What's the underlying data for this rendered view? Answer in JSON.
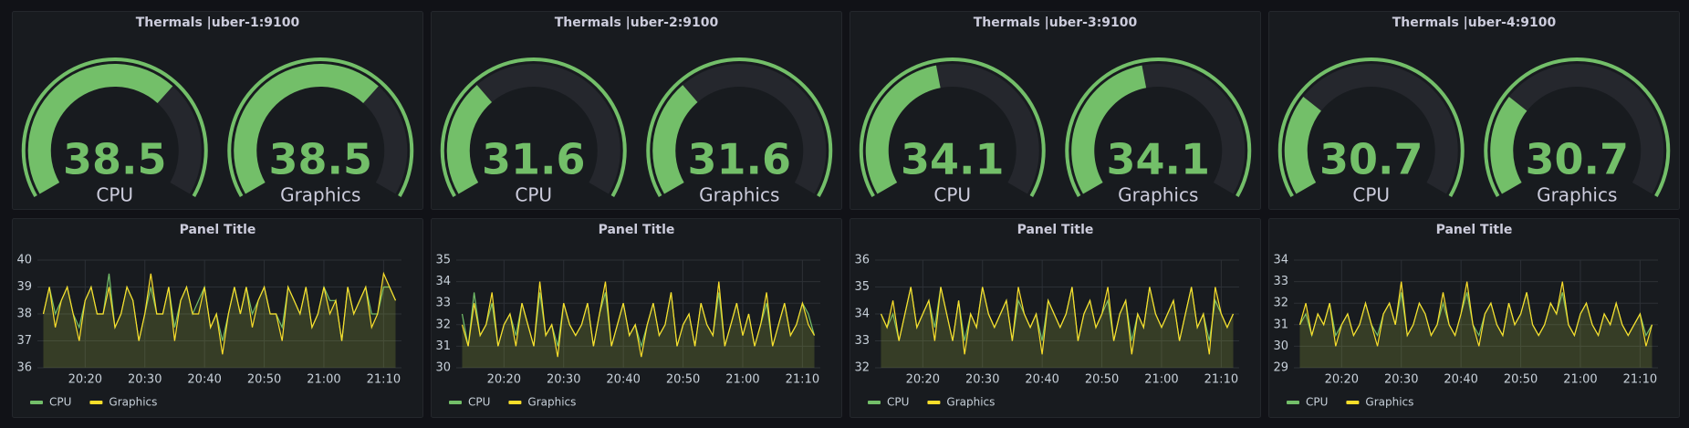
{
  "chart_data": [
    {
      "type": "gauge",
      "title": "Thermals |uber-1:9100",
      "ylim": [
        25,
        45
      ],
      "series": [
        {
          "name": "CPU",
          "color": "#73bf69",
          "values": [
            38.5
          ]
        },
        {
          "name": "Graphics",
          "color": "#73bf69",
          "values": [
            38.5
          ]
        }
      ]
    },
    {
      "type": "gauge",
      "title": "Thermals |uber-2:9100",
      "ylim": [
        25,
        45
      ],
      "series": [
        {
          "name": "CPU",
          "color": "#73bf69",
          "values": [
            31.6
          ]
        },
        {
          "name": "Graphics",
          "color": "#73bf69",
          "values": [
            31.6
          ]
        }
      ]
    },
    {
      "type": "gauge",
      "title": "Thermals |uber-3:9100",
      "ylim": [
        25,
        45
      ],
      "series": [
        {
          "name": "CPU",
          "color": "#73bf69",
          "values": [
            34.1
          ]
        },
        {
          "name": "Graphics",
          "color": "#73bf69",
          "values": [
            34.1
          ]
        }
      ]
    },
    {
      "type": "gauge",
      "title": "Thermals |uber-4:9100",
      "ylim": [
        25,
        45
      ],
      "series": [
        {
          "name": "CPU",
          "color": "#73bf69",
          "values": [
            30.7
          ]
        },
        {
          "name": "Graphics",
          "color": "#73bf69",
          "values": [
            30.7
          ]
        }
      ]
    },
    {
      "type": "line",
      "title": "Panel Title",
      "grid": true,
      "legend": "bottom-left",
      "x": [
        1213,
        1214,
        1215,
        1216,
        1217,
        1218,
        1219,
        1220,
        1221,
        1222,
        1223,
        1224,
        1225,
        1226,
        1227,
        1228,
        1229,
        1230,
        1231,
        1232,
        1233,
        1234,
        1235,
        1236,
        1237,
        1238,
        1239,
        1240,
        1241,
        1242,
        1243,
        1244,
        1245,
        1246,
        1247,
        1248,
        1249,
        1250,
        1251,
        1252,
        1253,
        1254,
        1255,
        1256,
        1257,
        1258,
        1259,
        1260,
        1261,
        1262,
        1263,
        1264,
        1265,
        1266,
        1267,
        1268,
        1269,
        1270,
        1271,
        1272
      ],
      "xlim": [
        1212,
        1273
      ],
      "xticks": [
        {
          "value": 1220,
          "label": "20:20"
        },
        {
          "value": 1230,
          "label": "20:30"
        },
        {
          "value": 1240,
          "label": "20:40"
        },
        {
          "value": 1250,
          "label": "20:50"
        },
        {
          "value": 1260,
          "label": "21:00"
        },
        {
          "value": 1270,
          "label": "21:10"
        }
      ],
      "ylim": [
        36,
        40
      ],
      "yticks": [
        36,
        37,
        38,
        39,
        40
      ],
      "series": [
        {
          "name": "CPU",
          "color": "#73bf69",
          "values": [
            38,
            39,
            38,
            38.5,
            39,
            38,
            37.5,
            38.5,
            39,
            38,
            38,
            39.5,
            37.5,
            38,
            39,
            38.5,
            37,
            38,
            39,
            38,
            38,
            39,
            37.5,
            38.5,
            39,
            38,
            38.5,
            39,
            37.5,
            38,
            37,
            38,
            39,
            38,
            39,
            38,
            38.5,
            39,
            38,
            38,
            37.5,
            39,
            38.5,
            38,
            39,
            37.5,
            38,
            39,
            38.5,
            38.5,
            37,
            39,
            38,
            38.5,
            39,
            38,
            38,
            39,
            39,
            38.5
          ]
        },
        {
          "name": "Graphics",
          "color": "#fade2a",
          "values": [
            38,
            39,
            37.5,
            38.5,
            39,
            38,
            37,
            38.5,
            39,
            38,
            38,
            39,
            37.5,
            38,
            39,
            38.5,
            37,
            38,
            39.5,
            38,
            38,
            39,
            37,
            38.5,
            39,
            38,
            38,
            39,
            37.5,
            38,
            36.5,
            38,
            39,
            38,
            39,
            37.5,
            38.5,
            39,
            38,
            38,
            37,
            39,
            38.5,
            38,
            39,
            37.5,
            38,
            39,
            38,
            38.5,
            37,
            39,
            38,
            38.5,
            39,
            37.5,
            38,
            39.5,
            39,
            38.5
          ]
        }
      ]
    },
    {
      "type": "line",
      "title": "Panel Title",
      "grid": true,
      "legend": "bottom-left",
      "x": [
        1213,
        1214,
        1215,
        1216,
        1217,
        1218,
        1219,
        1220,
        1221,
        1222,
        1223,
        1224,
        1225,
        1226,
        1227,
        1228,
        1229,
        1230,
        1231,
        1232,
        1233,
        1234,
        1235,
        1236,
        1237,
        1238,
        1239,
        1240,
        1241,
        1242,
        1243,
        1244,
        1245,
        1246,
        1247,
        1248,
        1249,
        1250,
        1251,
        1252,
        1253,
        1254,
        1255,
        1256,
        1257,
        1258,
        1259,
        1260,
        1261,
        1262,
        1263,
        1264,
        1265,
        1266,
        1267,
        1268,
        1269,
        1270,
        1271,
        1272
      ],
      "xlim": [
        1212,
        1273
      ],
      "xticks": [
        {
          "value": 1220,
          "label": "20:20"
        },
        {
          "value": 1230,
          "label": "20:30"
        },
        {
          "value": 1240,
          "label": "20:40"
        },
        {
          "value": 1250,
          "label": "20:50"
        },
        {
          "value": 1260,
          "label": "21:00"
        },
        {
          "value": 1270,
          "label": "21:10"
        }
      ],
      "ylim": [
        30,
        35
      ],
      "yticks": [
        30,
        31,
        32,
        33,
        34,
        35
      ],
      "series": [
        {
          "name": "CPU",
          "color": "#73bf69",
          "values": [
            32.5,
            31,
            33.5,
            31.5,
            32,
            33,
            31,
            32,
            32.5,
            31.5,
            33,
            32,
            31,
            33.5,
            31.5,
            32,
            31,
            33,
            32,
            31.5,
            32,
            33,
            31,
            32.5,
            33.5,
            31,
            32,
            33,
            31.5,
            32,
            31,
            32,
            33,
            31.5,
            32,
            33.5,
            31,
            32,
            32.5,
            31,
            33,
            32,
            31.5,
            33.5,
            31,
            32,
            33,
            31.5,
            32.5,
            31,
            32,
            33,
            31,
            32,
            33,
            31.5,
            32,
            33,
            32.5,
            31.5
          ]
        },
        {
          "name": "Graphics",
          "color": "#fade2a",
          "values": [
            32,
            31,
            33,
            31.5,
            32,
            33.5,
            31,
            32,
            32.5,
            31,
            33,
            32,
            31,
            34,
            31.5,
            32,
            30.5,
            33,
            32,
            31.5,
            32,
            33,
            31,
            32.5,
            34,
            31,
            32,
            33,
            31.5,
            32,
            30.5,
            32,
            33,
            31.5,
            32,
            33.5,
            31,
            32,
            32.5,
            31,
            33,
            32,
            31.5,
            34,
            31,
            32,
            33,
            31.5,
            32.5,
            31,
            32,
            33.5,
            31,
            32,
            33,
            31.5,
            32,
            33,
            32,
            31.5
          ]
        }
      ]
    },
    {
      "type": "line",
      "title": "Panel Title",
      "grid": true,
      "legend": "bottom-left",
      "x": [
        1213,
        1214,
        1215,
        1216,
        1217,
        1218,
        1219,
        1220,
        1221,
        1222,
        1223,
        1224,
        1225,
        1226,
        1227,
        1228,
        1229,
        1230,
        1231,
        1232,
        1233,
        1234,
        1235,
        1236,
        1237,
        1238,
        1239,
        1240,
        1241,
        1242,
        1243,
        1244,
        1245,
        1246,
        1247,
        1248,
        1249,
        1250,
        1251,
        1252,
        1253,
        1254,
        1255,
        1256,
        1257,
        1258,
        1259,
        1260,
        1261,
        1262,
        1263,
        1264,
        1265,
        1266,
        1267,
        1268,
        1269,
        1270,
        1271,
        1272
      ],
      "xlim": [
        1212,
        1273
      ],
      "xticks": [
        {
          "value": 1220,
          "label": "20:20"
        },
        {
          "value": 1230,
          "label": "20:30"
        },
        {
          "value": 1240,
          "label": "20:40"
        },
        {
          "value": 1250,
          "label": "20:50"
        },
        {
          "value": 1260,
          "label": "21:00"
        },
        {
          "value": 1270,
          "label": "21:10"
        }
      ],
      "ylim": [
        32,
        36
      ],
      "yticks": [
        32,
        33,
        34,
        35,
        36
      ],
      "series": [
        {
          "name": "CPU",
          "color": "#73bf69",
          "values": [
            34,
            33.5,
            34,
            33,
            34,
            35,
            33.5,
            34,
            34.5,
            33.5,
            35,
            34,
            33,
            34.5,
            33,
            34,
            33.5,
            35,
            34,
            33.5,
            34,
            34.5,
            33,
            34.5,
            34,
            33.5,
            34,
            33,
            34.5,
            34,
            33.5,
            34,
            35,
            33,
            34,
            34.5,
            33.5,
            34,
            34.5,
            33,
            34,
            34.5,
            33,
            34,
            33.5,
            35,
            34,
            33.5,
            34,
            34.5,
            33,
            34,
            35,
            33.5,
            34,
            33,
            34.5,
            34,
            33.5,
            34
          ]
        },
        {
          "name": "Graphics",
          "color": "#fade2a",
          "values": [
            34,
            33.5,
            34.5,
            33,
            34,
            35,
            33.5,
            34,
            34.5,
            33,
            35,
            34,
            33,
            34.5,
            32.5,
            34,
            33.5,
            35,
            34,
            33.5,
            34,
            34.5,
            33,
            35,
            34,
            33.5,
            34,
            32.5,
            34.5,
            34,
            33.5,
            34,
            35,
            33,
            34,
            34.5,
            33.5,
            34,
            35,
            33,
            34,
            34.5,
            32.5,
            34,
            33.5,
            35,
            34,
            33.5,
            34,
            34.5,
            33,
            34,
            35,
            33.5,
            34,
            32.5,
            35,
            34,
            33.5,
            34
          ]
        }
      ]
    },
    {
      "type": "line",
      "title": "Panel Title",
      "grid": true,
      "legend": "bottom-left",
      "x": [
        1213,
        1214,
        1215,
        1216,
        1217,
        1218,
        1219,
        1220,
        1221,
        1222,
        1223,
        1224,
        1225,
        1226,
        1227,
        1228,
        1229,
        1230,
        1231,
        1232,
        1233,
        1234,
        1235,
        1236,
        1237,
        1238,
        1239,
        1240,
        1241,
        1242,
        1243,
        1244,
        1245,
        1246,
        1247,
        1248,
        1249,
        1250,
        1251,
        1252,
        1253,
        1254,
        1255,
        1256,
        1257,
        1258,
        1259,
        1260,
        1261,
        1262,
        1263,
        1264,
        1265,
        1266,
        1267,
        1268,
        1269,
        1270,
        1271,
        1272
      ],
      "xlim": [
        1212,
        1273
      ],
      "xticks": [
        {
          "value": 1220,
          "label": "20:20"
        },
        {
          "value": 1230,
          "label": "20:30"
        },
        {
          "value": 1240,
          "label": "20:40"
        },
        {
          "value": 1250,
          "label": "20:50"
        },
        {
          "value": 1260,
          "label": "21:00"
        },
        {
          "value": 1270,
          "label": "21:10"
        }
      ],
      "ylim": [
        29,
        34
      ],
      "yticks": [
        29,
        30,
        31,
        32,
        33,
        34
      ],
      "series": [
        {
          "name": "CPU",
          "color": "#73bf69",
          "values": [
            31,
            31.5,
            30.5,
            31.5,
            31,
            32,
            30.5,
            31,
            31.5,
            30.5,
            31,
            32,
            31,
            30.5,
            31.5,
            32,
            31,
            32.5,
            30.5,
            31,
            32,
            31.5,
            30.5,
            31,
            32,
            31,
            30.5,
            31.5,
            32.5,
            31,
            30.5,
            31.5,
            32,
            31,
            30.5,
            32,
            31,
            31.5,
            32.5,
            31,
            30.5,
            31,
            32,
            31.5,
            32.5,
            31,
            30.5,
            31.5,
            32,
            31,
            30.5,
            31.5,
            31,
            32,
            31,
            30.5,
            31,
            31.5,
            30.5,
            31
          ]
        },
        {
          "name": "Graphics",
          "color": "#fade2a",
          "values": [
            31,
            32,
            30.5,
            31.5,
            31,
            32,
            30,
            31,
            31.5,
            30.5,
            31,
            32,
            31,
            30,
            31.5,
            32,
            31,
            33,
            30.5,
            31,
            32,
            31.5,
            30.5,
            31,
            32.5,
            31,
            30.5,
            31.5,
            33,
            31,
            30,
            31.5,
            32,
            31,
            30.5,
            32,
            31,
            31.5,
            32.5,
            31,
            30.5,
            31,
            32,
            31.5,
            33,
            31,
            30.5,
            31.5,
            32,
            31,
            30.5,
            31.5,
            31,
            32,
            31,
            30.5,
            31,
            31.5,
            30,
            31
          ]
        }
      ]
    }
  ]
}
